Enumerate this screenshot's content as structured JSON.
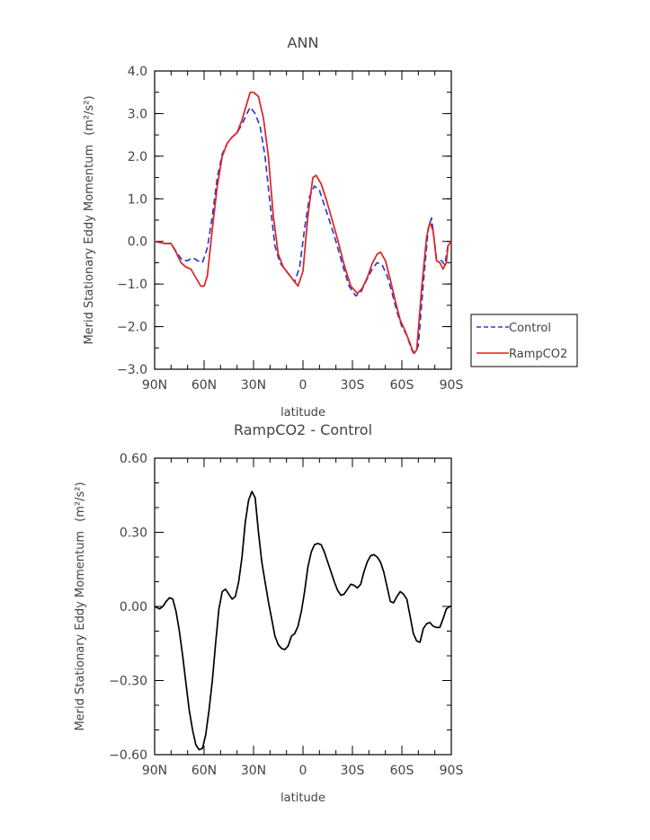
{
  "chart_data": [
    {
      "type": "line",
      "title": "ANN",
      "xlabel": "latitude",
      "ylabel": "Merid Stationary Eddy Momentum",
      "ylabel_unit": "(m²/s²)",
      "x_tick_labels": [
        "90N",
        "60N",
        "30N",
        "0",
        "30S",
        "60S",
        "90S"
      ],
      "xlim": [
        90,
        -90
      ],
      "ylim": [
        -3.0,
        4.0
      ],
      "y_tick_labels": [
        "-3.0",
        "-2.0",
        "-1.0",
        "0.0",
        "1.0",
        "2.0",
        "3.0",
        "4.0"
      ],
      "legend_position": "right",
      "series": [
        {
          "name": "Control",
          "color": "#2b3fd6",
          "style": "dashed",
          "points": [
            [
              90,
              0.0
            ],
            [
              84,
              -0.05
            ],
            [
              80,
              -0.05
            ],
            [
              76,
              -0.3
            ],
            [
              73,
              -0.45
            ],
            [
              70,
              -0.45
            ],
            [
              67,
              -0.38
            ],
            [
              64,
              -0.45
            ],
            [
              61,
              -0.5
            ],
            [
              58,
              -0.15
            ],
            [
              55,
              0.6
            ],
            [
              52,
              1.5
            ],
            [
              49,
              2.05
            ],
            [
              46,
              2.3
            ],
            [
              43,
              2.45
            ],
            [
              40,
              2.55
            ],
            [
              37,
              2.75
            ],
            [
              34,
              3.0
            ],
            [
              32,
              3.15
            ],
            [
              29,
              3.0
            ],
            [
              26,
              2.7
            ],
            [
              23,
              2.0
            ],
            [
              20,
              0.9
            ],
            [
              17,
              -0.1
            ],
            [
              14,
              -0.5
            ],
            [
              11,
              -0.65
            ],
            [
              8,
              -0.8
            ],
            [
              5,
              -0.95
            ],
            [
              2,
              -0.6
            ],
            [
              -1,
              0.3
            ],
            [
              -4,
              1.05
            ],
            [
              -7,
              1.3
            ],
            [
              -10,
              1.2
            ],
            [
              -13,
              0.85
            ],
            [
              -16,
              0.5
            ],
            [
              -20,
              0.0
            ],
            [
              -24,
              -0.55
            ],
            [
              -28,
              -1.05
            ],
            [
              -32,
              -1.28
            ],
            [
              -35,
              -1.2
            ],
            [
              -38,
              -0.95
            ],
            [
              -42,
              -0.65
            ],
            [
              -45,
              -0.5
            ],
            [
              -48,
              -0.55
            ],
            [
              -51,
              -0.8
            ],
            [
              -54,
              -1.2
            ],
            [
              -57,
              -1.65
            ],
            [
              -60,
              -2.0
            ],
            [
              -63,
              -2.2
            ],
            [
              -66,
              -2.55
            ],
            [
              -68,
              -2.62
            ],
            [
              -70,
              -2.45
            ],
            [
              -73,
              -1.0
            ],
            [
              -76,
              0.3
            ],
            [
              -78,
              0.55
            ],
            [
              -81,
              -0.4
            ],
            [
              -84,
              -0.45
            ],
            [
              -86,
              -0.55
            ],
            [
              -88,
              -0.1
            ],
            [
              -90,
              0.0
            ]
          ]
        },
        {
          "name": "RampCO2",
          "color": "#e02020",
          "style": "solid",
          "points": [
            [
              90,
              0.0
            ],
            [
              84,
              -0.05
            ],
            [
              80,
              -0.05
            ],
            [
              77,
              -0.25
            ],
            [
              74,
              -0.5
            ],
            [
              71,
              -0.6
            ],
            [
              68,
              -0.65
            ],
            [
              65,
              -0.85
            ],
            [
              62,
              -1.05
            ],
            [
              60,
              -1.05
            ],
            [
              58,
              -0.8
            ],
            [
              55,
              0.3
            ],
            [
              52,
              1.3
            ],
            [
              49,
              2.0
            ],
            [
              46,
              2.3
            ],
            [
              43,
              2.45
            ],
            [
              40,
              2.55
            ],
            [
              37,
              2.85
            ],
            [
              34,
              3.25
            ],
            [
              32,
              3.5
            ],
            [
              30,
              3.5
            ],
            [
              27,
              3.4
            ],
            [
              24,
              2.9
            ],
            [
              21,
              2.0
            ],
            [
              18,
              0.6
            ],
            [
              15,
              -0.3
            ],
            [
              12,
              -0.6
            ],
            [
              9,
              -0.75
            ],
            [
              6,
              -0.9
            ],
            [
              3,
              -1.05
            ],
            [
              0,
              -0.7
            ],
            [
              -3,
              0.6
            ],
            [
              -6,
              1.5
            ],
            [
              -8,
              1.55
            ],
            [
              -11,
              1.35
            ],
            [
              -14,
              1.0
            ],
            [
              -17,
              0.6
            ],
            [
              -21,
              0.05
            ],
            [
              -25,
              -0.55
            ],
            [
              -29,
              -1.05
            ],
            [
              -33,
              -1.22
            ],
            [
              -36,
              -1.1
            ],
            [
              -39,
              -0.85
            ],
            [
              -42,
              -0.52
            ],
            [
              -45,
              -0.3
            ],
            [
              -47,
              -0.25
            ],
            [
              -50,
              -0.45
            ],
            [
              -53,
              -0.9
            ],
            [
              -56,
              -1.4
            ],
            [
              -59,
              -1.85
            ],
            [
              -62,
              -2.1
            ],
            [
              -65,
              -2.4
            ],
            [
              -67,
              -2.62
            ],
            [
              -69,
              -2.55
            ],
            [
              -72,
              -1.1
            ],
            [
              -75,
              0.1
            ],
            [
              -77,
              0.45
            ],
            [
              -79,
              0.25
            ],
            [
              -81,
              -0.45
            ],
            [
              -83,
              -0.5
            ],
            [
              -85,
              -0.65
            ],
            [
              -87,
              -0.5
            ],
            [
              -88,
              -0.1
            ],
            [
              -90,
              0.0
            ]
          ]
        }
      ]
    },
    {
      "type": "line",
      "title": "RampCO2 - Control",
      "xlabel": "latitude",
      "ylabel": "Merid Stationary Eddy Momentum",
      "ylabel_unit": "(m²/s²)",
      "x_tick_labels": [
        "90N",
        "60N",
        "30N",
        "0",
        "30S",
        "60S",
        "90S"
      ],
      "xlim": [
        90,
        -90
      ],
      "ylim": [
        -0.6,
        0.6
      ],
      "y_tick_labels": [
        "-0.60",
        "-0.30",
        "0.00",
        "0.30",
        "0.60"
      ],
      "series": [
        {
          "color": "#000000",
          "style": "solid",
          "points": [
            [
              90,
              0.0
            ],
            [
              87,
              -0.01
            ],
            [
              85,
              0.0
            ],
            [
              83,
              0.02
            ],
            [
              81,
              0.035
            ],
            [
              79,
              0.03
            ],
            [
              77,
              -0.02
            ],
            [
              75,
              -0.1
            ],
            [
              73,
              -0.2
            ],
            [
              71,
              -0.31
            ],
            [
              69,
              -0.42
            ],
            [
              67,
              -0.5
            ],
            [
              65,
              -0.56
            ],
            [
              63,
              -0.58
            ],
            [
              61,
              -0.575
            ],
            [
              59,
              -0.52
            ],
            [
              57,
              -0.42
            ],
            [
              55,
              -0.3
            ],
            [
              53,
              -0.15
            ],
            [
              51,
              -0.01
            ],
            [
              49,
              0.06
            ],
            [
              47,
              0.07
            ],
            [
              45,
              0.05
            ],
            [
              43,
              0.03
            ],
            [
              41,
              0.04
            ],
            [
              39,
              0.1
            ],
            [
              37,
              0.2
            ],
            [
              35,
              0.34
            ],
            [
              33,
              0.43
            ],
            [
              31,
              0.465
            ],
            [
              29,
              0.44
            ],
            [
              27,
              0.3
            ],
            [
              25,
              0.18
            ],
            [
              23,
              0.1
            ],
            [
              21,
              0.02
            ],
            [
              19,
              -0.05
            ],
            [
              17,
              -0.12
            ],
            [
              15,
              -0.155
            ],
            [
              13,
              -0.17
            ],
            [
              11,
              -0.175
            ],
            [
              9,
              -0.16
            ],
            [
              7,
              -0.12
            ],
            [
              5,
              -0.11
            ],
            [
              3,
              -0.08
            ],
            [
              1,
              -0.02
            ],
            [
              -1,
              0.06
            ],
            [
              -3,
              0.16
            ],
            [
              -5,
              0.22
            ],
            [
              -7,
              0.25
            ],
            [
              -9,
              0.255
            ],
            [
              -11,
              0.25
            ],
            [
              -13,
              0.22
            ],
            [
              -15,
              0.18
            ],
            [
              -17,
              0.14
            ],
            [
              -19,
              0.1
            ],
            [
              -21,
              0.065
            ],
            [
              -23,
              0.045
            ],
            [
              -25,
              0.05
            ],
            [
              -27,
              0.07
            ],
            [
              -29,
              0.09
            ],
            [
              -31,
              0.085
            ],
            [
              -33,
              0.075
            ],
            [
              -35,
              0.09
            ],
            [
              -37,
              0.14
            ],
            [
              -39,
              0.18
            ],
            [
              -41,
              0.205
            ],
            [
              -43,
              0.21
            ],
            [
              -45,
              0.2
            ],
            [
              -47,
              0.18
            ],
            [
              -49,
              0.14
            ],
            [
              -51,
              0.08
            ],
            [
              -53,
              0.02
            ],
            [
              -55,
              0.015
            ],
            [
              -57,
              0.04
            ],
            [
              -59,
              0.06
            ],
            [
              -61,
              0.05
            ],
            [
              -63,
              0.03
            ],
            [
              -65,
              -0.04
            ],
            [
              -67,
              -0.11
            ],
            [
              -69,
              -0.14
            ],
            [
              -71,
              -0.145
            ],
            [
              -73,
              -0.09
            ],
            [
              -75,
              -0.07
            ],
            [
              -77,
              -0.065
            ],
            [
              -79,
              -0.08
            ],
            [
              -81,
              -0.085
            ],
            [
              -83,
              -0.085
            ],
            [
              -85,
              -0.05
            ],
            [
              -87,
              -0.01
            ],
            [
              -89,
              0.0
            ],
            [
              -90,
              0.0
            ]
          ]
        }
      ]
    }
  ]
}
